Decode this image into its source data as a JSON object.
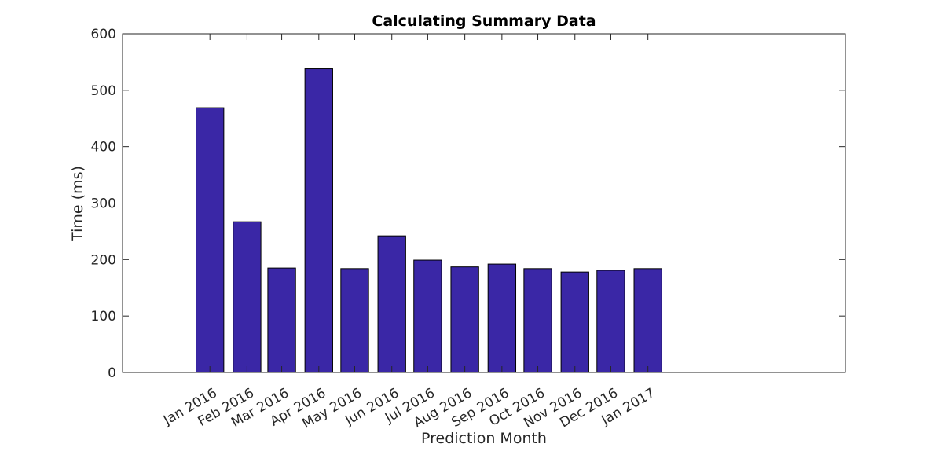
{
  "chart_data": {
    "type": "bar",
    "title": "Calculating Summary Data",
    "xlabel": "Prediction Month",
    "ylabel": "Time (ms)",
    "categories": [
      "Jan 2016",
      "Feb 2016",
      "Mar 2016",
      "Apr 2016",
      "May 2016",
      "Jun 2016",
      "Jul 2016",
      "Aug 2016",
      "Sep 2016",
      "Oct 2016",
      "Nov 2016",
      "Dec 2016",
      "Jan 2017"
    ],
    "dates": [
      "2016-01-01",
      "2016-02-01",
      "2016-03-01",
      "2016-04-01",
      "2016-05-01",
      "2016-06-01",
      "2016-07-01",
      "2016-08-01",
      "2016-09-01",
      "2016-10-01",
      "2016-11-01",
      "2016-12-01",
      "2017-01-01"
    ],
    "xlim": [
      "2015-10-20",
      "2017-06-15"
    ],
    "values": [
      469,
      267,
      185,
      538,
      184,
      242,
      199,
      187,
      192,
      184,
      178,
      181,
      184
    ],
    "ylim": [
      0,
      600
    ],
    "yticks": [
      0,
      100,
      200,
      300,
      400,
      500,
      600
    ],
    "bar_color": "#3a27a6",
    "grid": false,
    "legend": false
  }
}
